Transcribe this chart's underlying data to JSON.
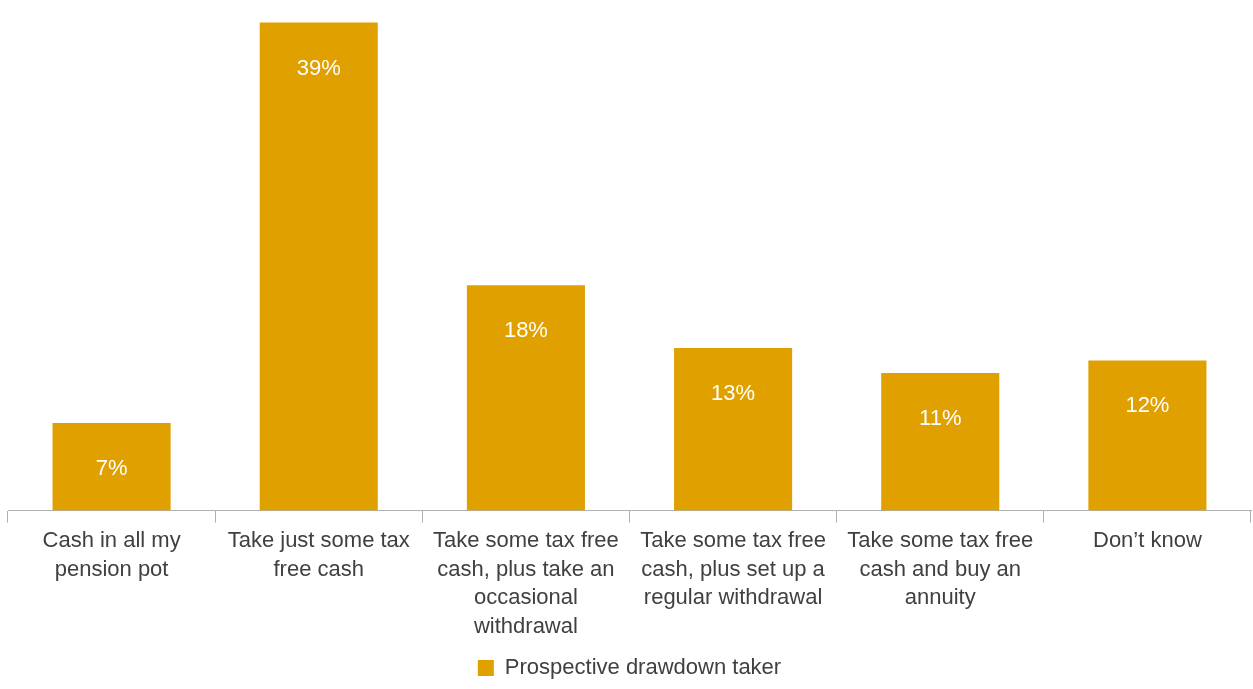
{
  "chart_data": {
    "type": "bar",
    "categories": [
      "Cash in all my pension pot",
      "Take just some tax free cash",
      "Take some tax free cash, plus take an occasional withdrawal",
      "Take some tax free cash, plus set up a regular withdrawal",
      "Take some tax free cash and buy an annuity",
      "Don’t know"
    ],
    "series": [
      {
        "name": "Prospective drawdown taker",
        "color": "#e0a100",
        "values": [
          7,
          39,
          18,
          13,
          11,
          12
        ],
        "value_labels": [
          "7%",
          "39%",
          "18%",
          "13%",
          "11%",
          "12%"
        ]
      }
    ],
    "legend": "bottom"
  }
}
